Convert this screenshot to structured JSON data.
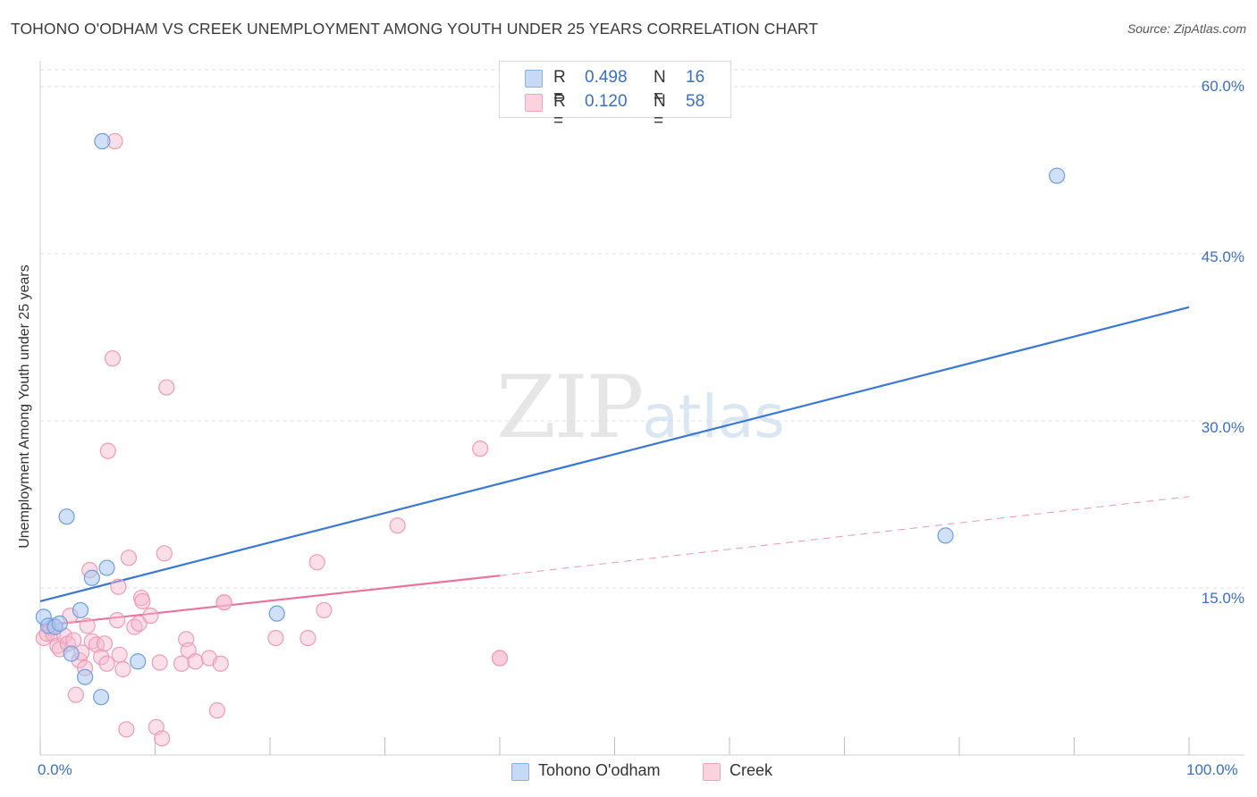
{
  "title": "TOHONO O'ODHAM VS CREEK UNEMPLOYMENT AMONG YOUTH UNDER 25 YEARS CORRELATION CHART",
  "source": "Source: ZipAtlas.com",
  "watermark": {
    "zip": "ZIP",
    "atlas": "atlas"
  },
  "legend": {
    "rows": [
      {
        "r_label": "R =",
        "r_value": "0.498",
        "n_label": "N =",
        "n_value": "16",
        "color": "#a9c7f0"
      },
      {
        "r_label": "R =",
        "r_value": "0.120",
        "n_label": "N =",
        "n_value": "58",
        "color": "#f7b9cb"
      }
    ]
  },
  "bottom_legend": [
    {
      "label": "Tohono O'odham",
      "color": "#a9c7f0"
    },
    {
      "label": "Creek",
      "color": "#f7b9cb"
    }
  ],
  "x_ticks": {
    "min_label": "0.0%",
    "max_label": "100.0%"
  },
  "y_ticks": [
    "60.0%",
    "45.0%",
    "30.0%",
    "15.0%"
  ],
  "chart_data": {
    "type": "scatter",
    "title": "TOHONO O'ODHAM VS CREEK UNEMPLOYMENT AMONG YOUTH UNDER 25 YEARS CORRELATION CHART",
    "xlabel": "",
    "ylabel": "Unemployment Among Youth under 25 years",
    "xlim": [
      0,
      100
    ],
    "ylim": [
      0,
      60
    ],
    "y_ticks": [
      15,
      30,
      45,
      60
    ],
    "grid": true,
    "colors": {
      "tohono": "#3a78d4",
      "creek": "#e8739b",
      "tohono_fill": "#a9c7f0",
      "creek_fill": "#f7b9cb"
    },
    "series": [
      {
        "name": "Tohono O'odham",
        "R": 0.498,
        "N": 16,
        "points": [
          [
            0.3,
            12.4
          ],
          [
            0.7,
            11.6
          ],
          [
            1.3,
            11.5
          ],
          [
            1.7,
            11.8
          ],
          [
            2.3,
            21.4
          ],
          [
            2.7,
            9.1
          ],
          [
            3.5,
            13.0
          ],
          [
            3.9,
            7.0
          ],
          [
            4.5,
            15.9
          ],
          [
            5.3,
            5.2
          ],
          [
            5.4,
            55.1
          ],
          [
            5.8,
            16.8
          ],
          [
            8.5,
            8.4
          ],
          [
            20.6,
            12.7
          ],
          [
            78.8,
            19.7
          ],
          [
            88.5,
            52.0
          ]
        ],
        "trend": {
          "x": [
            0,
            100
          ],
          "y": [
            13.8,
            40.2
          ]
        }
      },
      {
        "name": "Creek",
        "R": 0.12,
        "N": 58,
        "points": [
          [
            0.3,
            10.5
          ],
          [
            0.6,
            10.9
          ],
          [
            0.9,
            11.4
          ],
          [
            1.1,
            10.9
          ],
          [
            1.2,
            11.6
          ],
          [
            1.5,
            9.8
          ],
          [
            1.7,
            9.5
          ],
          [
            2.1,
            10.7
          ],
          [
            2.4,
            10.0
          ],
          [
            2.6,
            12.5
          ],
          [
            2.9,
            10.3
          ],
          [
            3.1,
            5.4
          ],
          [
            3.4,
            8.5
          ],
          [
            3.6,
            9.2
          ],
          [
            3.9,
            7.8
          ],
          [
            4.1,
            11.6
          ],
          [
            4.3,
            16.6
          ],
          [
            4.5,
            10.2
          ],
          [
            4.9,
            9.9
          ],
          [
            5.3,
            8.8
          ],
          [
            5.6,
            10.0
          ],
          [
            5.8,
            8.2
          ],
          [
            5.9,
            27.3
          ],
          [
            6.3,
            35.6
          ],
          [
            6.5,
            55.1
          ],
          [
            6.7,
            12.1
          ],
          [
            6.8,
            15.1
          ],
          [
            6.9,
            9.0
          ],
          [
            7.2,
            7.7
          ],
          [
            7.5,
            2.3
          ],
          [
            7.7,
            17.7
          ],
          [
            8.2,
            11.5
          ],
          [
            8.6,
            11.8
          ],
          [
            8.8,
            14.1
          ],
          [
            8.9,
            13.8
          ],
          [
            9.6,
            12.5
          ],
          [
            10.1,
            2.5
          ],
          [
            10.4,
            8.3
          ],
          [
            10.6,
            1.5
          ],
          [
            10.8,
            18.1
          ],
          [
            11.0,
            33.0
          ],
          [
            12.3,
            8.2
          ],
          [
            12.7,
            10.4
          ],
          [
            12.9,
            9.4
          ],
          [
            13.5,
            8.4
          ],
          [
            14.7,
            8.7
          ],
          [
            15.4,
            4.0
          ],
          [
            15.7,
            8.2
          ],
          [
            16.0,
            13.7
          ],
          [
            16.0,
            13.7
          ],
          [
            20.5,
            10.5
          ],
          [
            23.3,
            10.5
          ],
          [
            24.1,
            17.3
          ],
          [
            24.7,
            13.0
          ],
          [
            31.1,
            20.6
          ],
          [
            38.3,
            27.5
          ],
          [
            40.0,
            8.7
          ],
          [
            40.0,
            8.7
          ]
        ],
        "trend": {
          "x": [
            0,
            40
          ],
          "y": [
            11.6,
            16.1
          ]
        },
        "trend_extension": {
          "x": [
            40,
            100
          ],
          "y": [
            16.1,
            23.2
          ]
        }
      }
    ]
  }
}
